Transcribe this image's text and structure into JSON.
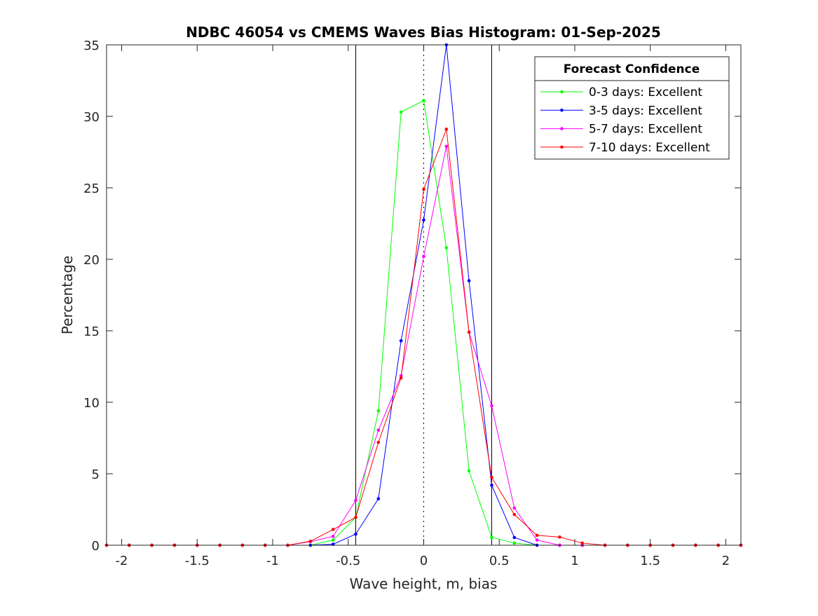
{
  "chart_data": {
    "type": "line",
    "title": "NDBC 46054 vs CMEMS Waves Bias Histogram: 01-Sep-2025",
    "xlabel": "Wave height, m, bias",
    "ylabel": "Percentage",
    "xlim": [
      -2.1,
      2.1
    ],
    "ylim": [
      0,
      35
    ],
    "xticks": [
      -2,
      -1.5,
      -1,
      -0.5,
      0,
      0.5,
      1,
      1.5,
      2
    ],
    "xtick_labels": [
      "-2",
      "-1.5",
      "-1",
      "-0.5",
      "0",
      "0.5",
      "1",
      "1.5",
      "2"
    ],
    "yticks": [
      0,
      5,
      10,
      15,
      20,
      25,
      30,
      35
    ],
    "ytick_labels": [
      "0",
      "5",
      "10",
      "15",
      "20",
      "25",
      "30",
      "35"
    ],
    "vertical_lines": [
      {
        "x": -0.45,
        "style": "solid"
      },
      {
        "x": 0,
        "style": "dotted"
      },
      {
        "x": 0.45,
        "style": "solid"
      }
    ],
    "grid": false,
    "legend": {
      "title": "Forecast Confidence",
      "placement": "top-right"
    },
    "x": [
      -2.1,
      -1.95,
      -1.8,
      -1.65,
      -1.5,
      -1.35,
      -1.2,
      -1.05,
      -0.9,
      -0.75,
      -0.6,
      -0.45,
      -0.3,
      -0.15,
      0,
      0.15,
      0.3,
      0.45,
      0.6,
      0.75,
      0.9,
      1.05,
      1.2,
      1.35,
      1.5,
      1.65,
      1.8,
      1.95,
      2.1
    ],
    "series": [
      {
        "name": "0-3 days: Excellent",
        "color": "#00ff00",
        "values": [
          0,
          0,
          0,
          0,
          0,
          0,
          0,
          0,
          0,
          0,
          0.36,
          1.95,
          9.4,
          30.3,
          31.1,
          20.8,
          5.2,
          0.54,
          0.15,
          0,
          0,
          0,
          0,
          0,
          0,
          0,
          0,
          0,
          0
        ]
      },
      {
        "name": "3-5 days: Excellent",
        "color": "#0000ff",
        "values": [
          0,
          0,
          0,
          0,
          0,
          0,
          0,
          0,
          0,
          0,
          0.07,
          0.78,
          3.25,
          14.3,
          22.75,
          35,
          18.5,
          4.2,
          0.54,
          0,
          0,
          0,
          0,
          0,
          0,
          0,
          0,
          0,
          0
        ]
      },
      {
        "name": "5-7 days: Excellent",
        "color": "#ff00ff",
        "values": [
          0,
          0,
          0,
          0,
          0,
          0,
          0,
          0,
          0,
          0.25,
          0.62,
          3.14,
          8.05,
          11.86,
          20.2,
          27.9,
          14.9,
          9.75,
          2.6,
          0.36,
          0,
          0,
          0,
          0,
          0,
          0,
          0,
          0,
          0
        ]
      },
      {
        "name": "7-10 days: Excellent",
        "color": "#ff0000",
        "values": [
          0,
          0,
          0,
          0,
          0,
          0,
          0,
          0,
          0,
          0.28,
          1.1,
          1.95,
          7.2,
          11.7,
          24.9,
          29.1,
          14.9,
          4.75,
          2.15,
          0.69,
          0.57,
          0.15,
          0,
          0,
          0,
          0,
          0,
          0,
          0
        ]
      }
    ]
  }
}
